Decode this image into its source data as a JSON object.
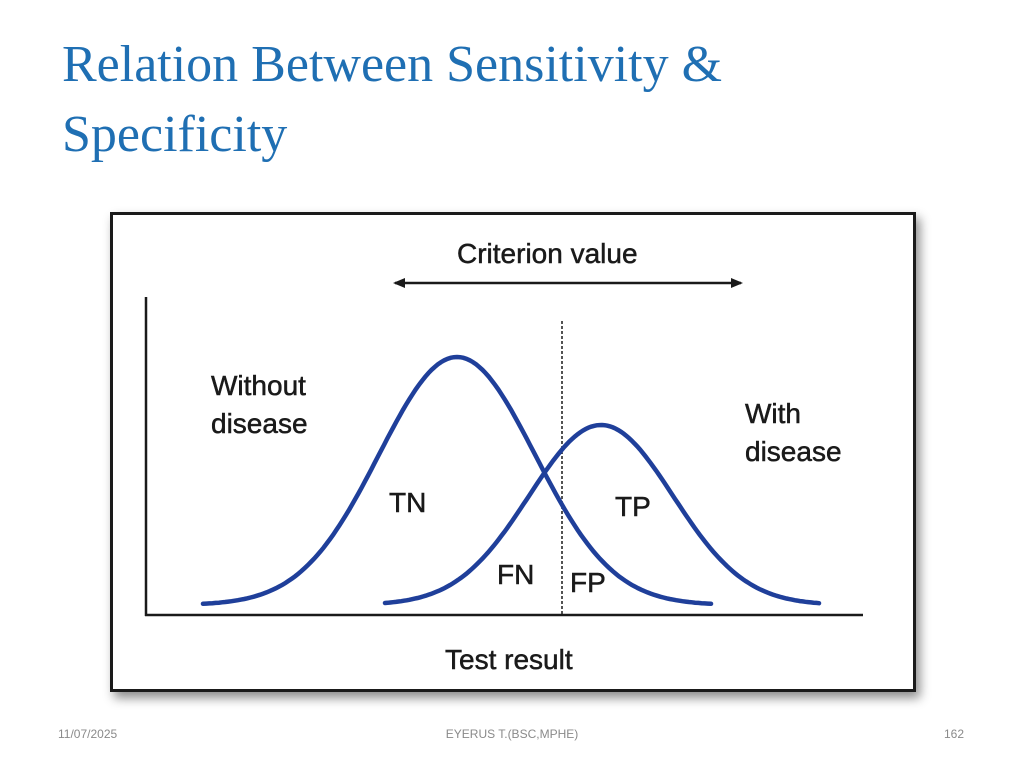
{
  "slide": {
    "title_line1": "Relation Between Sensitivity &",
    "title_line2": "Specificity"
  },
  "figure": {
    "criterion_label": "Criterion value",
    "without_disease_line1": "Without",
    "without_disease_line2": "disease",
    "with_disease_line1": "With",
    "with_disease_line2": "disease",
    "tn_label": "TN",
    "tp_label": "TP",
    "fn_label": "FN",
    "fp_label": "FP",
    "x_axis_label": "Test result",
    "curve_color": "#1f3f9a",
    "axis_color": "#1a1a1a"
  },
  "footer": {
    "date": "11/07/2025",
    "author": "EYERUS T.(BSC,MPHE)",
    "page": "162"
  }
}
